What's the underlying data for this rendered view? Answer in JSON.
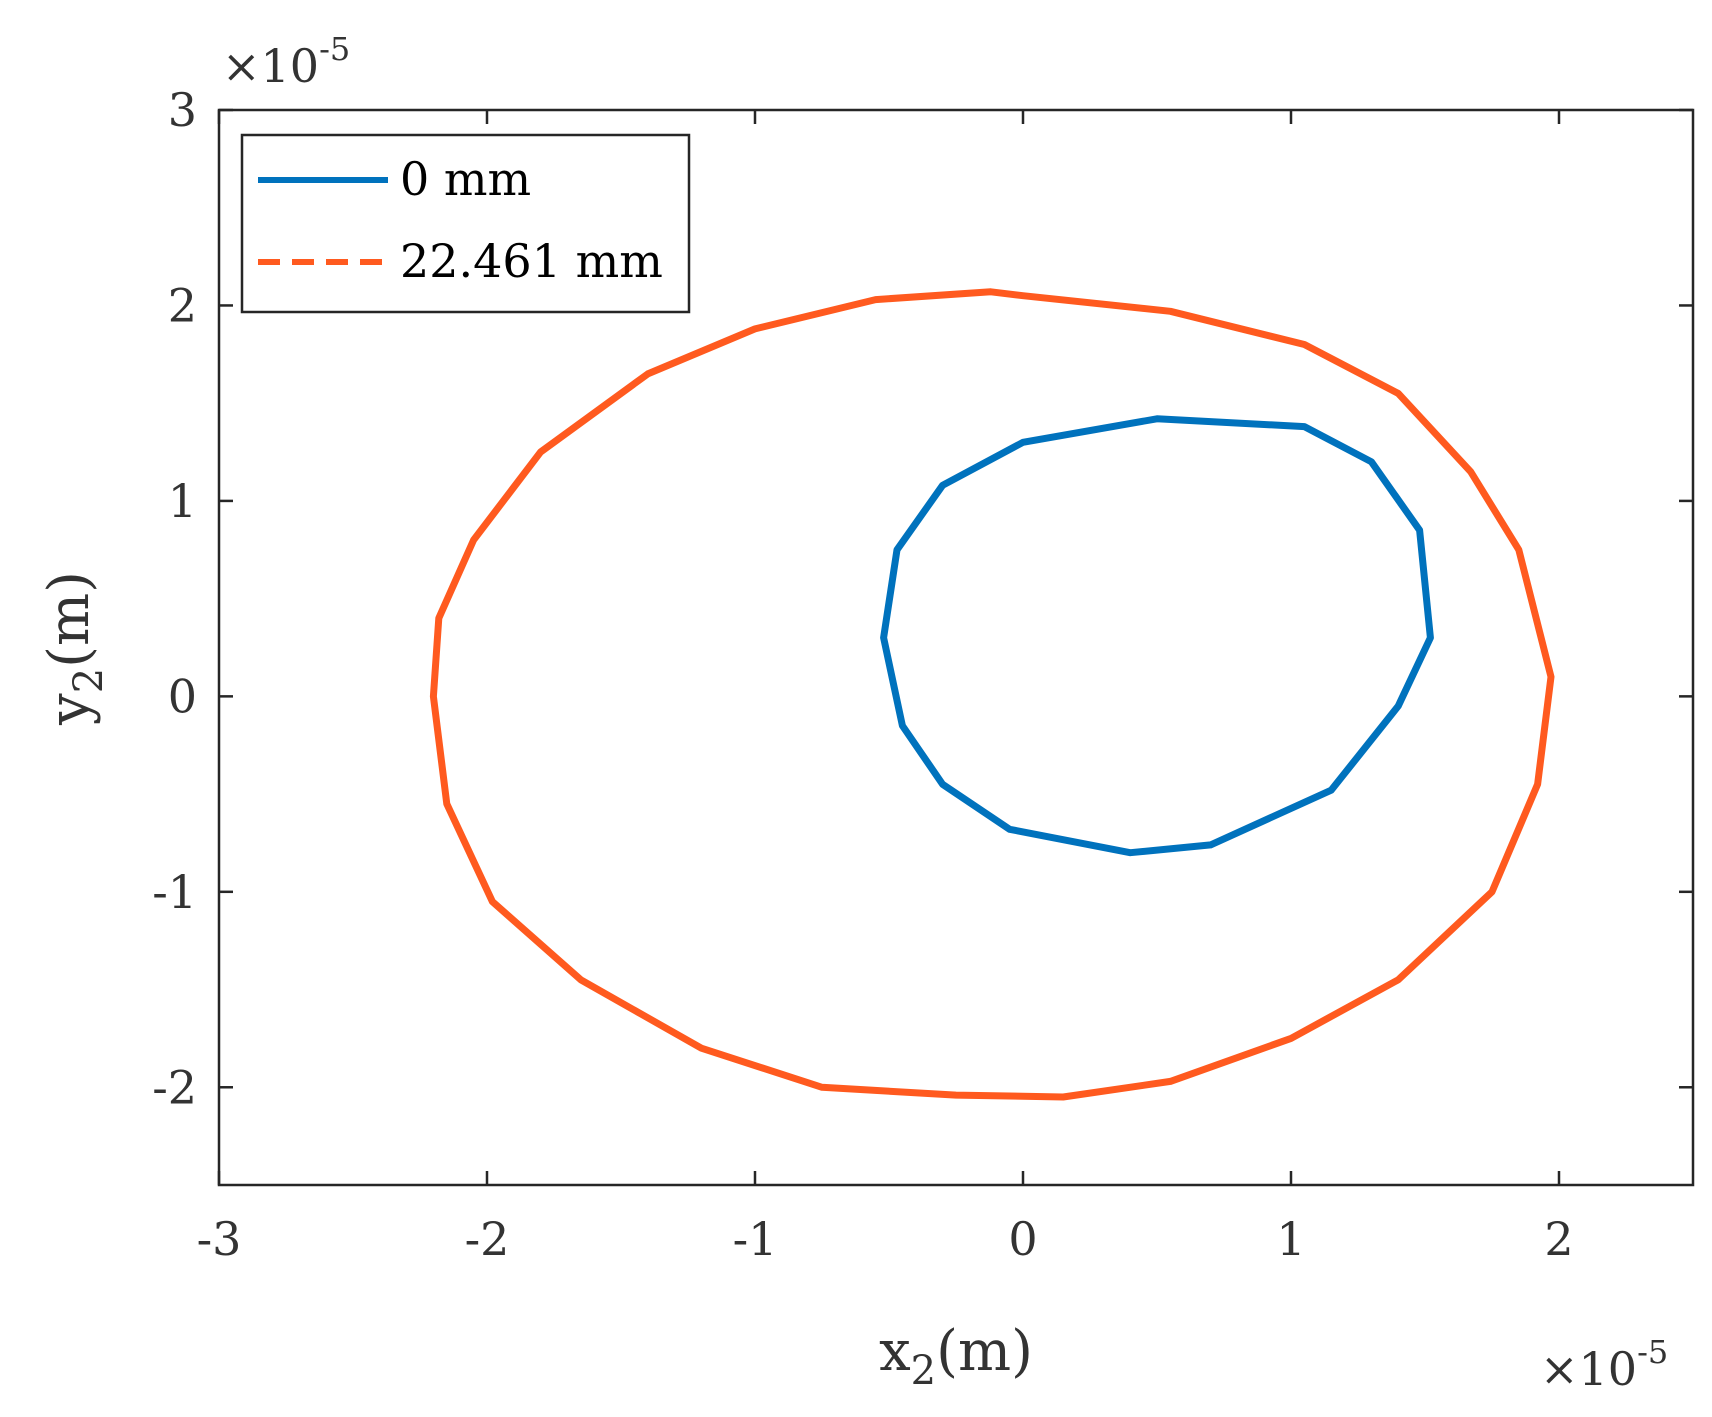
{
  "chart_data": {
    "type": "line",
    "title": "",
    "xlabel": {
      "main": "x",
      "sub": "2",
      "unit": "(m)"
    },
    "ylabel": {
      "main": "y",
      "sub": "2",
      "unit": "(m)"
    },
    "xlim": [
      -3,
      2.5
    ],
    "ylim": [
      -2.5,
      3
    ],
    "x_multiplier": {
      "base": "×10",
      "exp": "-5"
    },
    "y_multiplier": {
      "base": "×10",
      "exp": "-5"
    },
    "xticks": [
      -3,
      -2,
      -1,
      0,
      1,
      2
    ],
    "xtick_labels": [
      "-3",
      "-2",
      "-1",
      "0",
      "1",
      "2"
    ],
    "yticks": [
      -2,
      -1,
      0,
      1,
      2,
      3
    ],
    "ytick_labels": [
      "-2",
      "-1",
      "0",
      "1",
      "2",
      "3"
    ],
    "grid": false,
    "legend_position": "top-left",
    "series": [
      {
        "name": "0 mm",
        "color": "#0072BD",
        "style": "solid",
        "points": [
          [
            1.52,
            0.3
          ],
          [
            1.48,
            0.85
          ],
          [
            1.3,
            1.2
          ],
          [
            1.05,
            1.38
          ],
          [
            0.5,
            1.42
          ],
          [
            0.0,
            1.3
          ],
          [
            -0.3,
            1.08
          ],
          [
            -0.47,
            0.75
          ],
          [
            -0.52,
            0.3
          ],
          [
            -0.45,
            -0.15
          ],
          [
            -0.3,
            -0.45
          ],
          [
            -0.05,
            -0.68
          ],
          [
            0.4,
            -0.8
          ],
          [
            0.7,
            -0.76
          ],
          [
            1.15,
            -0.48
          ],
          [
            1.4,
            -0.05
          ],
          [
            1.52,
            0.3
          ]
        ]
      },
      {
        "name": "22.461 mm",
        "color": "#FF5A1F",
        "style": "dashed",
        "points": [
          [
            1.97,
            0.1
          ],
          [
            1.85,
            0.75
          ],
          [
            1.67,
            1.15
          ],
          [
            1.4,
            1.55
          ],
          [
            1.05,
            1.8
          ],
          [
            0.55,
            1.97
          ],
          [
            0.0,
            2.05
          ],
          [
            -0.12,
            2.07
          ],
          [
            -0.55,
            2.03
          ],
          [
            -1.0,
            1.88
          ],
          [
            -1.4,
            1.65
          ],
          [
            -1.8,
            1.25
          ],
          [
            -2.05,
            0.8
          ],
          [
            -2.18,
            0.4
          ],
          [
            -2.2,
            0.0
          ],
          [
            -2.15,
            -0.55
          ],
          [
            -1.98,
            -1.05
          ],
          [
            -1.65,
            -1.45
          ],
          [
            -1.2,
            -1.8
          ],
          [
            -0.75,
            -2.0
          ],
          [
            -0.25,
            -2.04
          ],
          [
            0.15,
            -2.05
          ],
          [
            0.55,
            -1.97
          ],
          [
            1.0,
            -1.75
          ],
          [
            1.4,
            -1.45
          ],
          [
            1.75,
            -1.0
          ],
          [
            1.92,
            -0.45
          ],
          [
            1.97,
            0.1
          ]
        ]
      }
    ]
  }
}
